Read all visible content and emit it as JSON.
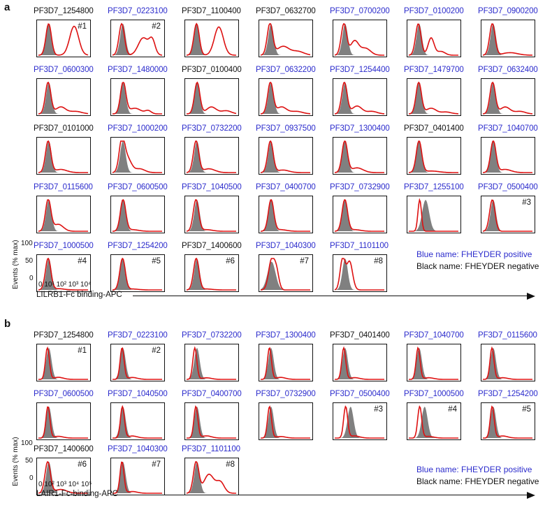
{
  "colors": {
    "positive": "#2b2bcc",
    "negative": "#111111",
    "overlay": "#dd1111",
    "control": "#808080"
  },
  "panel_a": {
    "letter": "a",
    "rows": [
      [
        {
          "name": "PF3D7_1254800",
          "status": "negative",
          "tag": "#1"
        },
        {
          "name": "PF3D7_0223100",
          "status": "positive",
          "tag": "#2"
        },
        {
          "name": "PF3D7_1100400",
          "status": "negative",
          "tag": ""
        },
        {
          "name": "PF3D7_0632700",
          "status": "negative",
          "tag": ""
        },
        {
          "name": "PF3D7_0700200",
          "status": "positive",
          "tag": ""
        },
        {
          "name": "PF3D7_0100200",
          "status": "positive",
          "tag": ""
        },
        {
          "name": "PF3D7_0900200",
          "status": "positive",
          "tag": ""
        }
      ],
      [
        {
          "name": "PF3D7_0600300",
          "status": "positive",
          "tag": ""
        },
        {
          "name": "PF3D7_1480000",
          "status": "positive",
          "tag": ""
        },
        {
          "name": "PF3D7_0100400",
          "status": "negative",
          "tag": ""
        },
        {
          "name": "PF3D7_0632200",
          "status": "positive",
          "tag": ""
        },
        {
          "name": "PF3D7_1254400",
          "status": "positive",
          "tag": ""
        },
        {
          "name": "PF3D7_1479700",
          "status": "positive",
          "tag": ""
        },
        {
          "name": "PF3D7_0632400",
          "status": "positive",
          "tag": ""
        }
      ],
      [
        {
          "name": "PF3D7_0101000",
          "status": "negative",
          "tag": ""
        },
        {
          "name": "PF3D7_1000200",
          "status": "positive",
          "tag": ""
        },
        {
          "name": "PF3D7_0732200",
          "status": "positive",
          "tag": ""
        },
        {
          "name": "PF3D7_0937500",
          "status": "positive",
          "tag": ""
        },
        {
          "name": "PF3D7_1300400",
          "status": "positive",
          "tag": ""
        },
        {
          "name": "PF3D7_0401400",
          "status": "negative",
          "tag": ""
        },
        {
          "name": "PF3D7_1040700",
          "status": "positive",
          "tag": ""
        }
      ],
      [
        {
          "name": "PF3D7_0115600",
          "status": "positive",
          "tag": ""
        },
        {
          "name": "PF3D7_0600500",
          "status": "positive",
          "tag": ""
        },
        {
          "name": "PF3D7_1040500",
          "status": "positive",
          "tag": ""
        },
        {
          "name": "PF3D7_0400700",
          "status": "positive",
          "tag": ""
        },
        {
          "name": "PF3D7_0732900",
          "status": "positive",
          "tag": ""
        },
        {
          "name": "PF3D7_1255100",
          "status": "positive",
          "tag": ""
        },
        {
          "name": "PF3D7_0500400",
          "status": "positive",
          "tag": "#3"
        }
      ],
      [
        {
          "name": "PF3D7_1000500",
          "status": "positive",
          "tag": "#4"
        },
        {
          "name": "PF3D7_1254200",
          "status": "positive",
          "tag": "#5"
        },
        {
          "name": "PF3D7_1400600",
          "status": "negative",
          "tag": "#6"
        },
        {
          "name": "PF3D7_1040300",
          "status": "positive",
          "tag": "#7"
        },
        {
          "name": "PF3D7_1101100",
          "status": "positive",
          "tag": "#8"
        }
      ]
    ],
    "y_axis_label": "Events (% max)",
    "y_ticks": [
      "100",
      "50",
      "0"
    ],
    "x_ticks": "0 10¹ 10² 10³ 10⁴",
    "x_axis_label": "LILRB1-Fc binding-APC",
    "legend": {
      "positive": "Blue name: FHEYDER positive",
      "negative": "Black name: FHEYDER negative"
    }
  },
  "panel_b": {
    "letter": "b",
    "rows": [
      [
        {
          "name": "PF3D7_1254800",
          "status": "negative",
          "tag": "#1"
        },
        {
          "name": "PF3D7_0223100",
          "status": "positive",
          "tag": "#2"
        },
        {
          "name": "PF3D7_0732200",
          "status": "positive",
          "tag": ""
        },
        {
          "name": "PF3D7_1300400",
          "status": "positive",
          "tag": ""
        },
        {
          "name": "PF3D7_0401400",
          "status": "negative",
          "tag": ""
        },
        {
          "name": "PF3D7_1040700",
          "status": "positive",
          "tag": ""
        },
        {
          "name": "PF3D7_0115600",
          "status": "positive",
          "tag": ""
        }
      ],
      [
        {
          "name": "PF3D7_0600500",
          "status": "positive",
          "tag": ""
        },
        {
          "name": "PF3D7_1040500",
          "status": "positive",
          "tag": ""
        },
        {
          "name": "PF3D7_0400700",
          "status": "positive",
          "tag": ""
        },
        {
          "name": "PF3D7_0732900",
          "status": "positive",
          "tag": ""
        },
        {
          "name": "PF3D7_0500400",
          "status": "positive",
          "tag": "#3"
        },
        {
          "name": "PF3D7_1000500",
          "status": "positive",
          "tag": "#4"
        },
        {
          "name": "PF3D7_1254200",
          "status": "positive",
          "tag": "#5"
        }
      ],
      [
        {
          "name": "PF3D7_1400600",
          "status": "negative",
          "tag": "#6"
        },
        {
          "name": "PF3D7_1040300",
          "status": "positive",
          "tag": "#7"
        },
        {
          "name": "PF3D7_1101100",
          "status": "positive",
          "tag": "#8"
        }
      ]
    ],
    "y_axis_label": "Events (% max)",
    "y_ticks": [
      "100",
      "50",
      "0"
    ],
    "x_ticks": "0  10² 10³ 10⁴ 10⁵",
    "x_axis_label": "LAIR1-Fc-binding-APC",
    "legend": {
      "positive": "Blue name: FHEYDER positive",
      "negative": "Black name: FHEYDER negative"
    }
  }
}
